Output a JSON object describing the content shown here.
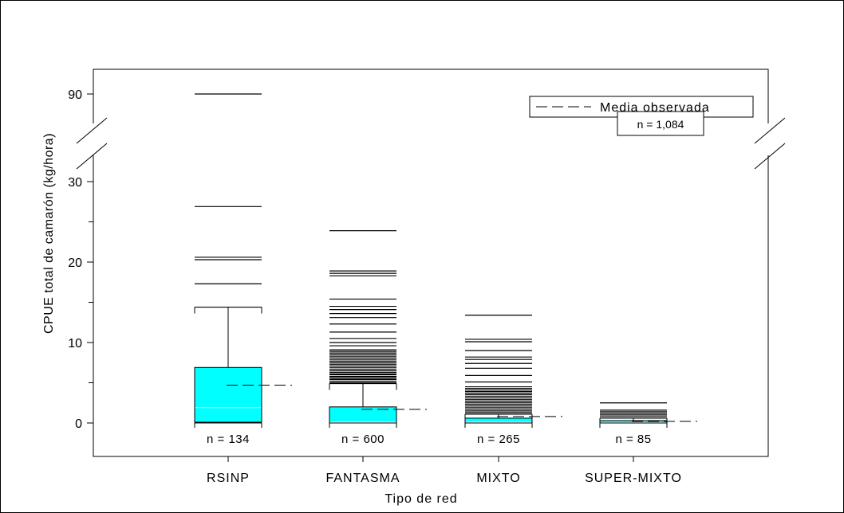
{
  "chart_data": {
    "type": "box",
    "xlabel": "Tipo de red",
    "ylabel": "CPUE total de camarón (kg/hora)",
    "y_axis_break": true,
    "yticks": [
      {
        "value": 0,
        "label": "0"
      },
      {
        "value": 10,
        "label": "10"
      },
      {
        "value": 20,
        "label": "20"
      },
      {
        "value": 30,
        "label": "30"
      },
      {
        "value": 90,
        "label": "90"
      }
    ],
    "categories": [
      "RSINP",
      "FANTASMA",
      "MIXTO",
      "SUPER-MIXTO"
    ],
    "legend": {
      "label": "Media observada",
      "position": "top-right"
    },
    "total_n_label": "n = 1,084",
    "box_color": "#00ffff",
    "mean_line_style": "dashed",
    "series": [
      {
        "category": "RSINP",
        "n_label": "n = 134",
        "q1": 0.1,
        "median": 1.9,
        "q3": 6.9,
        "whisker_low": 0,
        "whisker_high": 14.4,
        "mean": 4.7,
        "outliers": [
          17.3,
          20.3,
          20.6,
          26.9,
          90.0
        ]
      },
      {
        "category": "FANTASMA",
        "n_label": "n = 600",
        "q1": 0,
        "median": 0.1,
        "q3": 2.0,
        "whisker_low": 0,
        "whisker_high": 4.9,
        "mean": 1.7,
        "outliers": [
          5.0,
          5.2,
          5.4,
          5.5,
          5.7,
          5.8,
          6.0,
          6.1,
          6.3,
          6.5,
          6.7,
          6.9,
          7.1,
          7.3,
          7.5,
          7.7,
          7.9,
          8.1,
          8.3,
          8.5,
          8.7,
          8.9,
          9.1,
          9.6,
          10.0,
          10.5,
          11.3,
          12.3,
          13.1,
          13.6,
          14.1,
          14.5,
          15.4,
          18.3,
          18.6,
          18.9,
          23.9
        ]
      },
      {
        "category": "MIXTO",
        "n_label": "n = 265",
        "q1": 0,
        "median": 0.1,
        "q3": 0.6,
        "whisker_low": 0,
        "whisker_high": 1.1,
        "mean": 0.8,
        "outliers": [
          1.3,
          1.5,
          1.7,
          1.9,
          2.1,
          2.3,
          2.5,
          2.7,
          2.9,
          3.1,
          3.3,
          3.5,
          3.7,
          3.9,
          4.1,
          4.3,
          4.5,
          5.1,
          5.9,
          6.8,
          7.4,
          7.9,
          8.2,
          9.0,
          10.1,
          10.4,
          13.4
        ]
      },
      {
        "category": "SUPER-MIXTO",
        "n_label": "n = 85",
        "q1": 0,
        "median": 0.05,
        "q3": 0.3,
        "whisker_low": 0,
        "whisker_high": 0.6,
        "mean": 0.2,
        "outliers": [
          0.8,
          1.0,
          1.2,
          1.4,
          1.6,
          2.5
        ]
      }
    ]
  }
}
